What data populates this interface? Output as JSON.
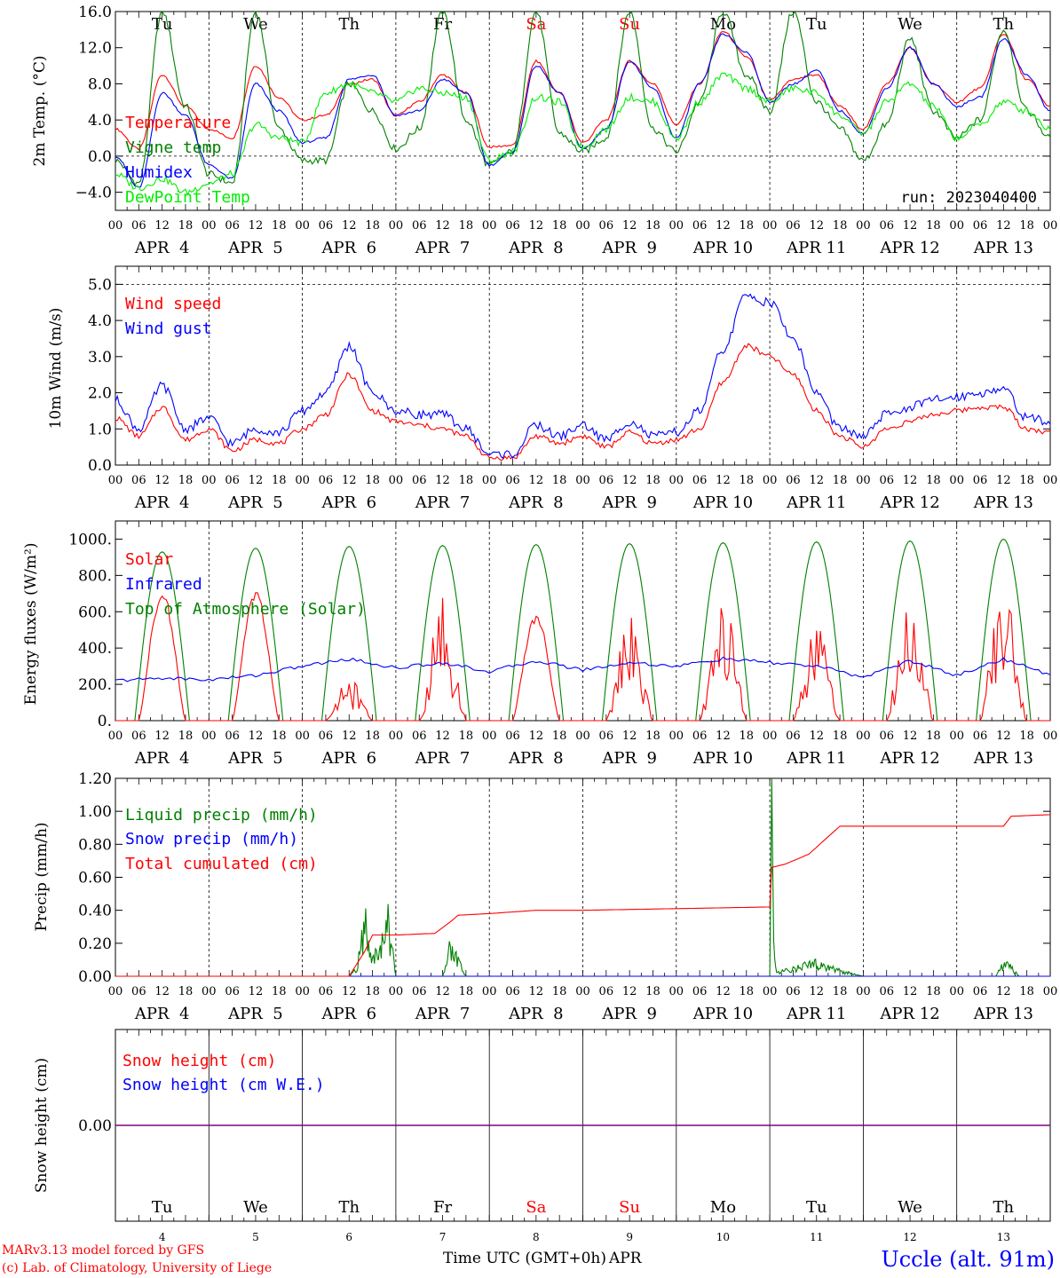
{
  "colors": {
    "red": "#ff0000",
    "blue": "#0000ff",
    "dark_green": "#008000",
    "light_green": "#00ee00",
    "purple": "#800080",
    "axis": "#000000"
  },
  "x_axis": {
    "hour_ticks": [
      "00",
      "06",
      "12",
      "18"
    ],
    "date_labels": [
      "APR  4",
      "APR  5",
      "APR  6",
      "APR  7",
      "APR  8",
      "APR  9",
      "APR 10",
      "APR 11",
      "APR 12",
      "APR 13"
    ],
    "weekdays": [
      "Tu",
      "We",
      "Th",
      "Fr",
      "Sa",
      "Su",
      "Mo",
      "Tu",
      "We",
      "Th"
    ],
    "weekday_colors": [
      "#000000",
      "#000000",
      "#000000",
      "#000000",
      "#ff0000",
      "#ff0000",
      "#000000",
      "#000000",
      "#000000",
      "#000000"
    ],
    "day_numbers": [
      "4",
      "5",
      "6",
      "7",
      "8",
      "9",
      "10",
      "11",
      "12",
      "13"
    ],
    "final_tick": "00",
    "xlabel": "Time UTC (GMT+0h)",
    "month": "APR"
  },
  "footer": {
    "credit_line1": "MARv3.13 model forced by GFS",
    "credit_line2": "(c) Lab. of Climatology, University of Liege",
    "station": "Uccle (alt. 91m)"
  },
  "chart_data": [
    {
      "id": "temperature",
      "type": "line",
      "ylabel": "2m Temp. (°C)",
      "ylim": [
        -6,
        16
      ],
      "yticks": [
        -4,
        0,
        4,
        8,
        12,
        16
      ],
      "ytick_labels": [
        "−4.0",
        "0.0",
        "4.0",
        "8.0",
        "12.0",
        "16.0"
      ],
      "run_label": "run: 2023040400",
      "x_unit": "hours since APR 4 00 UTC",
      "series": [
        {
          "name": "Temperature",
          "color": "#ff0000",
          "x": [
            0,
            6,
            12,
            18,
            24,
            30,
            36,
            42,
            48,
            54,
            60,
            66,
            72,
            78,
            84,
            90,
            96,
            102,
            108,
            114,
            120,
            126,
            132,
            138,
            144,
            150,
            156,
            162,
            168,
            174,
            180,
            186,
            192,
            198,
            204,
            210,
            216,
            222,
            228,
            234,
            240
          ],
          "y": [
            3.0,
            0.8,
            9.0,
            5.5,
            3.0,
            2.0,
            10.0,
            6.5,
            4.0,
            4.5,
            8.0,
            8.5,
            4.5,
            6.0,
            9.0,
            7.0,
            1.0,
            1.2,
            10.5,
            7.0,
            1.5,
            4.0,
            10.5,
            8.0,
            3.5,
            8.0,
            13.8,
            11.0,
            6.2,
            8.5,
            9.0,
            5.5,
            3.0,
            8.0,
            12.0,
            8.0,
            6.0,
            7.5,
            13.5,
            8.5,
            5.5
          ]
        },
        {
          "name": "Vigne temp",
          "color": "#008000",
          "x": [
            0,
            6,
            12,
            18,
            24,
            30,
            36,
            42,
            48,
            54,
            60,
            66,
            72,
            78,
            84,
            90,
            96,
            102,
            108,
            114,
            120,
            126,
            132,
            138,
            144,
            150,
            156,
            162,
            168,
            174,
            180,
            186,
            192,
            198,
            204,
            210,
            216,
            222,
            228,
            234,
            240
          ],
          "y": [
            -0.5,
            -3.0,
            16.0,
            5.5,
            -2.0,
            -3.0,
            16.0,
            3.0,
            -0.5,
            -0.5,
            8.0,
            5.0,
            0.8,
            3.0,
            16.0,
            4.0,
            -1.0,
            0.5,
            16.0,
            2.5,
            0.5,
            2.0,
            16.0,
            3.0,
            0.5,
            6.0,
            16.0,
            9.0,
            5.0,
            16.0,
            6.0,
            3.0,
            -0.5,
            3.5,
            13.0,
            5.0,
            2.0,
            4.0,
            14.0,
            5.0,
            2.0
          ]
        },
        {
          "name": "Humidex",
          "color": "#0000ff",
          "x": [
            0,
            6,
            12,
            18,
            24,
            30,
            36,
            42,
            48,
            54,
            60,
            66,
            72,
            78,
            84,
            90,
            96,
            102,
            108,
            114,
            120,
            126,
            132,
            138,
            144,
            150,
            156,
            162,
            168,
            174,
            180,
            186,
            192,
            198,
            204,
            210,
            216,
            222,
            228,
            234,
            240
          ],
          "y": [
            0.0,
            -3.5,
            7.0,
            4.5,
            -1.0,
            -2.5,
            8.0,
            5.0,
            1.5,
            2.0,
            8.5,
            9.0,
            4.5,
            5.0,
            8.5,
            7.0,
            -1.0,
            0.5,
            10.0,
            7.0,
            0.8,
            3.0,
            10.5,
            7.5,
            2.0,
            8.0,
            13.5,
            11.5,
            6.0,
            8.0,
            9.5,
            5.0,
            2.5,
            7.5,
            12.0,
            8.0,
            5.5,
            6.5,
            13.0,
            9.0,
            5.0
          ]
        },
        {
          "name": "DewPoint Temp",
          "color": "#00ee00",
          "x": [
            0,
            6,
            12,
            18,
            24,
            30,
            36,
            42,
            48,
            54,
            60,
            66,
            72,
            78,
            84,
            90,
            96,
            102,
            108,
            114,
            120,
            126,
            132,
            138,
            144,
            150,
            156,
            162,
            168,
            174,
            180,
            186,
            192,
            198,
            204,
            210,
            216,
            222,
            228,
            234,
            240
          ],
          "y": [
            -2.0,
            -3.5,
            -2.5,
            -4.0,
            -3.0,
            -2.0,
            3.5,
            2.0,
            1.5,
            7.0,
            8.0,
            7.0,
            6.0,
            7.5,
            7.0,
            6.5,
            -0.5,
            0.5,
            6.5,
            6.0,
            1.0,
            3.0,
            6.5,
            6.0,
            2.0,
            6.0,
            9.0,
            7.5,
            6.0,
            7.5,
            7.0,
            4.5,
            2.5,
            6.0,
            8.0,
            5.5,
            2.0,
            3.5,
            6.0,
            5.0,
            3.0
          ]
        }
      ]
    },
    {
      "id": "wind",
      "type": "line",
      "ylabel": "10m Wind (m/s)",
      "ylim": [
        0,
        5.5
      ],
      "yticks": [
        0,
        1,
        2,
        3,
        4,
        5
      ],
      "ytick_labels": [
        "0.0",
        "1.0",
        "2.0",
        "3.0",
        "4.0",
        "5.0"
      ],
      "x_unit": "hours since APR 4 00 UTC",
      "series": [
        {
          "name": "Wind speed",
          "color": "#ff0000",
          "x": [
            0,
            6,
            12,
            18,
            24,
            30,
            36,
            42,
            48,
            54,
            60,
            66,
            72,
            78,
            84,
            90,
            96,
            102,
            108,
            114,
            120,
            126,
            132,
            138,
            144,
            150,
            156,
            162,
            168,
            174,
            180,
            186,
            192,
            198,
            204,
            210,
            216,
            222,
            228,
            234,
            240
          ],
          "y": [
            1.3,
            0.8,
            1.6,
            0.7,
            1.0,
            0.4,
            0.7,
            0.6,
            1.0,
            1.4,
            2.5,
            1.5,
            1.2,
            1.1,
            1.0,
            0.8,
            0.2,
            0.2,
            0.8,
            0.6,
            0.8,
            0.5,
            0.9,
            0.6,
            0.7,
            1.0,
            2.3,
            3.3,
            3.0,
            2.5,
            1.5,
            0.8,
            0.5,
            1.0,
            1.2,
            1.4,
            1.5,
            1.6,
            1.6,
            1.0,
            0.9
          ]
        },
        {
          "name": "Wind gust",
          "color": "#0000ff",
          "x": [
            0,
            6,
            12,
            18,
            24,
            30,
            36,
            42,
            48,
            54,
            60,
            66,
            72,
            78,
            84,
            90,
            96,
            102,
            108,
            114,
            120,
            126,
            132,
            138,
            144,
            150,
            156,
            162,
            168,
            174,
            180,
            186,
            192,
            198,
            204,
            210,
            216,
            222,
            228,
            234,
            240
          ],
          "y": [
            1.8,
            1.0,
            2.2,
            1.0,
            1.3,
            0.6,
            1.0,
            0.9,
            1.5,
            2.0,
            3.3,
            2.0,
            1.5,
            1.4,
            1.4,
            1.0,
            0.3,
            0.3,
            1.1,
            0.8,
            1.1,
            0.7,
            1.2,
            0.8,
            0.9,
            1.5,
            3.2,
            4.7,
            4.5,
            3.5,
            2.0,
            1.0,
            0.8,
            1.4,
            1.6,
            1.8,
            1.9,
            2.0,
            2.1,
            1.3,
            1.2
          ]
        }
      ]
    },
    {
      "id": "energy",
      "type": "line",
      "ylabel": "Energy fluxes (W/m²)",
      "ylim": [
        0,
        1100
      ],
      "yticks": [
        0,
        200,
        400,
        600,
        800,
        1000
      ],
      "ytick_labels": [
        "0.",
        "200.",
        "400.",
        "600.",
        "800.",
        "1000."
      ],
      "x_unit": "hours since APR 4 00 UTC",
      "series": [
        {
          "name": "Solar",
          "color": "#ff0000",
          "daily_peak": [
            730,
            720,
            240,
            680,
            590,
            630,
            710,
            600,
            680,
            730
          ]
        },
        {
          "name": "Infrared",
          "color": "#0000ff",
          "x": [
            0,
            12,
            24,
            36,
            48,
            60,
            72,
            84,
            96,
            108,
            120,
            132,
            144,
            156,
            168,
            180,
            192,
            204,
            216,
            228,
            240
          ],
          "y": [
            220,
            235,
            225,
            250,
            300,
            340,
            290,
            320,
            270,
            330,
            280,
            320,
            300,
            340,
            320,
            300,
            240,
            330,
            250,
            340,
            250
          ]
        },
        {
          "name": "Top of Atmosphere (Solar)",
          "color": "#008000",
          "daily_peak": [
            930,
            950,
            960,
            965,
            970,
            975,
            980,
            985,
            990,
            1000
          ]
        }
      ]
    },
    {
      "id": "precip",
      "type": "line",
      "ylabel": "Precip (mm/h)",
      "ylim": [
        0,
        1.2
      ],
      "yticks": [
        0,
        0.2,
        0.4,
        0.6,
        0.8,
        1.0,
        1.2
      ],
      "ytick_labels": [
        "0.00",
        "0.20",
        "0.40",
        "0.60",
        "0.80",
        "1.00",
        "1.20"
      ],
      "x_unit": "hours since APR 4 00 UTC",
      "series": [
        {
          "name": "Liquid precip (mm/h)",
          "color": "#008000",
          "x": [
            0,
            60,
            62,
            64,
            66,
            68,
            70,
            72,
            84,
            86,
            88,
            90,
            120,
            168,
            168.5,
            169,
            169.5,
            170,
            172,
            176,
            180,
            186,
            192,
            216,
            226,
            228,
            230,
            232,
            240
          ],
          "y": [
            0,
            0,
            0.05,
            0.3,
            0.1,
            0.15,
            0.3,
            0,
            0,
            0.18,
            0.08,
            0,
            0,
            0,
            1.12,
            0.25,
            0.05,
            0.02,
            0.03,
            0.06,
            0.07,
            0.03,
            0,
            0,
            0,
            0.07,
            0.05,
            0,
            0
          ]
        },
        {
          "name": "Snow precip (mm/h)",
          "color": "#0000ff",
          "x": [
            0,
            240
          ],
          "y": [
            0,
            0
          ]
        },
        {
          "name": "Total cumulated (cm)",
          "color": "#ff0000",
          "x": [
            0,
            60,
            64,
            66,
            72,
            82,
            86,
            88,
            96,
            108,
            120,
            144,
            168,
            168.5,
            172,
            178,
            186,
            204,
            228,
            230,
            240
          ],
          "y": [
            0,
            0,
            0.15,
            0.25,
            0.25,
            0.26,
            0.33,
            0.37,
            0.38,
            0.4,
            0.4,
            0.41,
            0.42,
            0.66,
            0.68,
            0.74,
            0.91,
            0.91,
            0.91,
            0.97,
            0.98
          ]
        }
      ]
    },
    {
      "id": "snow",
      "type": "line",
      "ylabel": "Snow height (cm)",
      "yticks": [
        0
      ],
      "ytick_labels": [
        "0.00"
      ],
      "x_unit": "hours since APR 4 00 UTC",
      "series": [
        {
          "name": "Snow height (cm)",
          "color": "#ff0000",
          "x": [
            0,
            240
          ],
          "y": [
            0,
            0
          ]
        },
        {
          "name": "Snow height (cm W.E.)",
          "color": "#0000ff",
          "x": [
            0,
            240
          ],
          "y": [
            0,
            0
          ]
        }
      ]
    }
  ]
}
